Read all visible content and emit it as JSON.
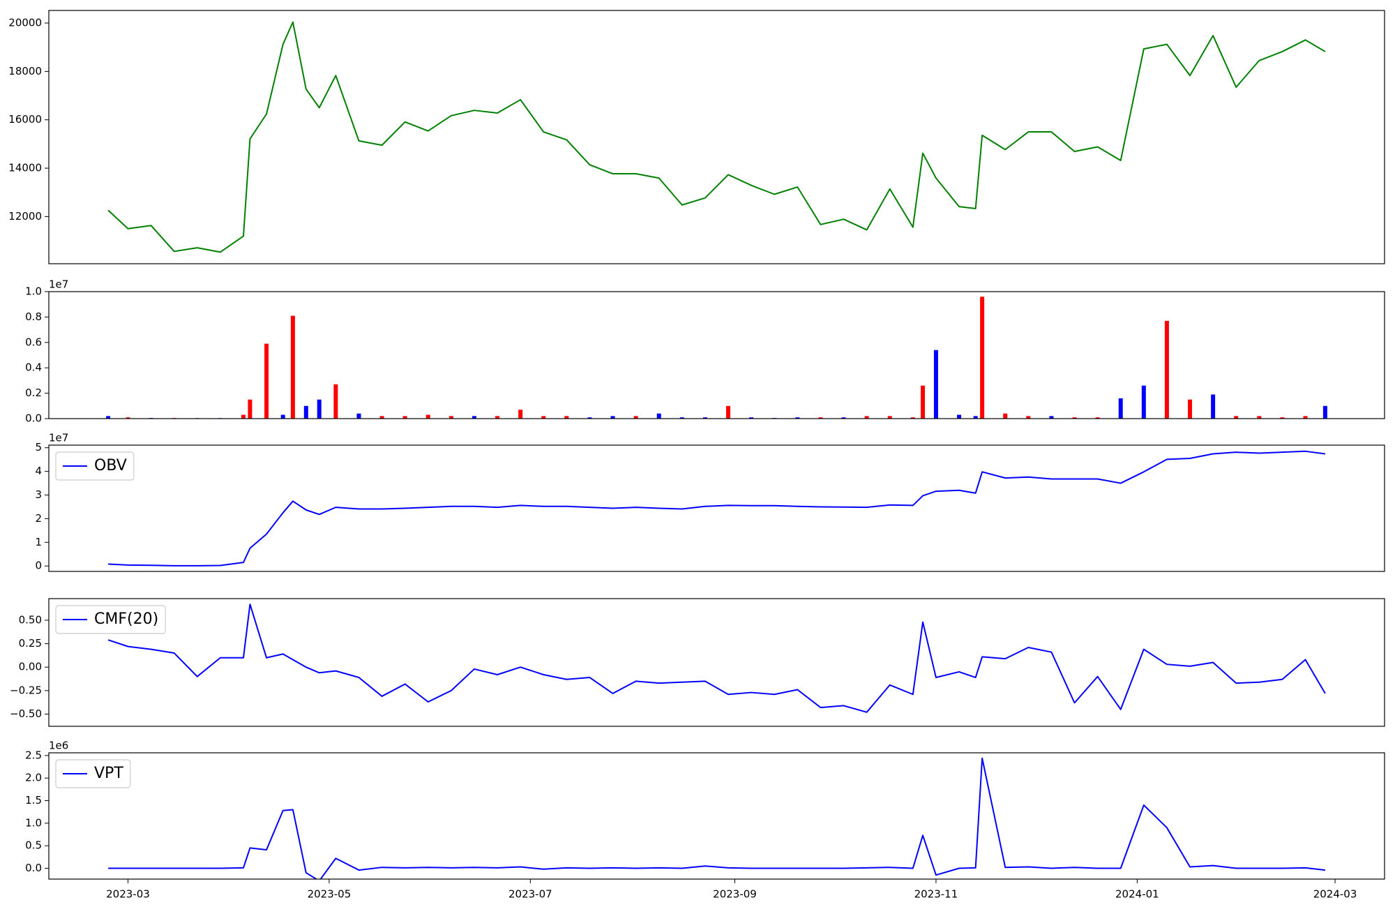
{
  "chart_data": [
    {
      "type": "line",
      "color": "#008000",
      "x": [
        "2023-02-23",
        "2023-03-01",
        "2023-03-08",
        "2023-03-15",
        "2023-03-22",
        "2023-03-29",
        "2023-04-05",
        "2023-04-07",
        "2023-04-12",
        "2023-04-17",
        "2023-04-20",
        "2023-04-24",
        "2023-04-28",
        "2023-05-03",
        "2023-05-10",
        "2023-05-17",
        "2023-05-24",
        "2023-05-31",
        "2023-06-07",
        "2023-06-14",
        "2023-06-21",
        "2023-06-28",
        "2023-07-05",
        "2023-07-12",
        "2023-07-19",
        "2023-07-26",
        "2023-08-02",
        "2023-08-09",
        "2023-08-16",
        "2023-08-23",
        "2023-08-30",
        "2023-09-06",
        "2023-09-13",
        "2023-09-20",
        "2023-09-27",
        "2023-10-04",
        "2023-10-11",
        "2023-10-18",
        "2023-10-25",
        "2023-10-28",
        "2023-11-01",
        "2023-11-08",
        "2023-11-13",
        "2023-11-15",
        "2023-11-22",
        "2023-11-29",
        "2023-12-06",
        "2023-12-13",
        "2023-12-20",
        "2023-12-27",
        "2024-01-03",
        "2024-01-10",
        "2024-01-17",
        "2024-01-24",
        "2024-01-31",
        "2024-02-07",
        "2024-02-14",
        "2024-02-21",
        "2024-02-27"
      ],
      "values": [
        12260,
        11500,
        11630,
        10560,
        10710,
        10530,
        11190,
        15210,
        16240,
        19120,
        20040,
        17270,
        16500,
        17830,
        15130,
        14950,
        15910,
        15540,
        16170,
        16390,
        16280,
        16830,
        15500,
        15170,
        14140,
        13770,
        13770,
        13590,
        12480,
        12770,
        13730,
        13290,
        12920,
        13220,
        11670,
        11890,
        11450,
        13140,
        11560,
        14620,
        13590,
        12410,
        12330,
        15360,
        14770,
        15500,
        15500,
        14690,
        14880,
        14320,
        18930,
        19120,
        17830,
        19480,
        17350,
        18450,
        18820,
        19300,
        18820
      ],
      "xlim": [
        "2023-02-05",
        "2024-03-16"
      ],
      "ylim": [
        10050,
        20520
      ],
      "yticks": [
        12000,
        14000,
        16000,
        18000,
        20000
      ]
    },
    {
      "type": "bar",
      "offset_label": "1e7",
      "x": [
        "2023-02-23",
        "2023-03-01",
        "2023-03-08",
        "2023-03-15",
        "2023-03-22",
        "2023-03-29",
        "2023-04-05",
        "2023-04-07",
        "2023-04-12",
        "2023-04-17",
        "2023-04-20",
        "2023-04-24",
        "2023-04-28",
        "2023-05-03",
        "2023-05-10",
        "2023-05-17",
        "2023-05-24",
        "2023-05-31",
        "2023-06-07",
        "2023-06-14",
        "2023-06-21",
        "2023-06-28",
        "2023-07-05",
        "2023-07-12",
        "2023-07-19",
        "2023-07-26",
        "2023-08-02",
        "2023-08-09",
        "2023-08-16",
        "2023-08-23",
        "2023-08-30",
        "2023-09-06",
        "2023-09-13",
        "2023-09-20",
        "2023-09-27",
        "2023-10-04",
        "2023-10-11",
        "2023-10-18",
        "2023-10-25",
        "2023-10-28",
        "2023-11-01",
        "2023-11-08",
        "2023-11-13",
        "2023-11-15",
        "2023-11-22",
        "2023-11-29",
        "2023-12-06",
        "2023-12-13",
        "2023-12-20",
        "2023-12-27",
        "2024-01-03",
        "2024-01-10",
        "2024-01-17",
        "2024-01-24",
        "2024-01-31",
        "2024-02-07",
        "2024-02-14",
        "2024-02-21",
        "2024-02-27"
      ],
      "values": [
        0.02,
        0.01,
        0.005,
        0.005,
        0.004,
        0.004,
        0.03,
        0.15,
        0.59,
        0.03,
        0.81,
        0.1,
        0.15,
        0.27,
        0.04,
        0.02,
        0.02,
        0.03,
        0.02,
        0.02,
        0.02,
        0.07,
        0.02,
        0.02,
        0.01,
        0.02,
        0.02,
        0.04,
        0.01,
        0.01,
        0.1,
        0.01,
        0.005,
        0.01,
        0.01,
        0.01,
        0.02,
        0.02,
        0.01,
        0.26,
        0.54,
        0.03,
        0.02,
        0.96,
        0.04,
        0.02,
        0.02,
        0.01,
        0.01,
        0.16,
        0.26,
        0.77,
        0.15,
        0.19,
        0.02,
        0.02,
        0.01,
        0.02,
        0.1
      ],
      "colors": [
        "#0000ff",
        "#ff0000",
        "#0000ff",
        "#ff0000",
        "#0000ff",
        "#0000ff",
        "#ff0000",
        "#ff0000",
        "#ff0000",
        "#0000ff",
        "#ff0000",
        "#0000ff",
        "#0000ff",
        "#ff0000",
        "#0000ff",
        "#ff0000",
        "#ff0000",
        "#ff0000",
        "#ff0000",
        "#0000ff",
        "#ff0000",
        "#ff0000",
        "#ff0000",
        "#ff0000",
        "#0000ff",
        "#0000ff",
        "#ff0000",
        "#0000ff",
        "#0000ff",
        "#0000ff",
        "#ff0000",
        "#0000ff",
        "#0000ff",
        "#0000ff",
        "#ff0000",
        "#0000ff",
        "#ff0000",
        "#ff0000",
        "#ff0000",
        "#ff0000",
        "#0000ff",
        "#0000ff",
        "#0000ff",
        "#ff0000",
        "#ff0000",
        "#ff0000",
        "#0000ff",
        "#ff0000",
        "#ff0000",
        "#0000ff",
        "#0000ff",
        "#ff0000",
        "#ff0000",
        "#0000ff",
        "#ff0000",
        "#ff0000",
        "#ff0000",
        "#ff0000",
        "#0000ff"
      ],
      "xlim": [
        "2023-02-05",
        "2024-03-16"
      ],
      "ylim": [
        0,
        1.0
      ],
      "yticks": [
        {
          "value": 0,
          "label": "0.0"
        },
        0.2,
        0.4,
        0.6,
        0.8,
        {
          "value": 1.0,
          "label": "1.0"
        }
      ]
    },
    {
      "type": "line",
      "offset_label": "1e7",
      "legend": "upper left",
      "x": [
        "2023-02-23",
        "2023-03-01",
        "2023-03-08",
        "2023-03-15",
        "2023-03-22",
        "2023-03-29",
        "2023-04-05",
        "2023-04-07",
        "2023-04-12",
        "2023-04-17",
        "2023-04-20",
        "2023-04-24",
        "2023-04-28",
        "2023-05-03",
        "2023-05-10",
        "2023-05-17",
        "2023-05-24",
        "2023-05-31",
        "2023-06-07",
        "2023-06-14",
        "2023-06-21",
        "2023-06-28",
        "2023-07-05",
        "2023-07-12",
        "2023-07-19",
        "2023-07-26",
        "2023-08-02",
        "2023-08-09",
        "2023-08-16",
        "2023-08-23",
        "2023-08-30",
        "2023-09-06",
        "2023-09-13",
        "2023-09-20",
        "2023-09-27",
        "2023-10-04",
        "2023-10-11",
        "2023-10-18",
        "2023-10-25",
        "2023-10-28",
        "2023-11-01",
        "2023-11-08",
        "2023-11-13",
        "2023-11-15",
        "2023-11-22",
        "2023-11-29",
        "2023-12-06",
        "2023-12-13",
        "2023-12-20",
        "2023-12-27",
        "2024-01-03",
        "2024-01-10",
        "2024-01-17",
        "2024-01-24",
        "2024-01-31",
        "2024-02-07",
        "2024-02-14",
        "2024-02-21",
        "2024-02-27"
      ],
      "series": [
        {
          "name": "OBV",
          "color": "#0000ff",
          "values": [
            0.08,
            0.04,
            0.03,
            0.01,
            0.01,
            0.02,
            0.15,
            0.75,
            1.35,
            2.25,
            2.74,
            2.37,
            2.18,
            2.48,
            2.41,
            2.41,
            2.44,
            2.48,
            2.52,
            2.52,
            2.48,
            2.56,
            2.52,
            2.52,
            2.48,
            2.44,
            2.48,
            2.44,
            2.41,
            2.52,
            2.56,
            2.55,
            2.55,
            2.52,
            2.5,
            2.49,
            2.48,
            2.58,
            2.56,
            2.97,
            3.16,
            3.2,
            3.08,
            3.98,
            3.72,
            3.76,
            3.68,
            3.68,
            3.68,
            3.5,
            3.98,
            4.51,
            4.55,
            4.74,
            4.81,
            4.77,
            4.81,
            4.85,
            4.74
          ]
        }
      ],
      "xlim": [
        "2023-02-05",
        "2024-03-16"
      ],
      "ylim": [
        -0.23,
        5.11
      ],
      "yticks": [
        0,
        1,
        2,
        3,
        4,
        5
      ]
    },
    {
      "type": "line",
      "legend": "upper left",
      "x": [
        "2023-02-23",
        "2023-03-01",
        "2023-03-08",
        "2023-03-15",
        "2023-03-22",
        "2023-03-29",
        "2023-04-05",
        "2023-04-07",
        "2023-04-12",
        "2023-04-17",
        "2023-04-20",
        "2023-04-24",
        "2023-04-28",
        "2023-05-03",
        "2023-05-10",
        "2023-05-17",
        "2023-05-24",
        "2023-05-31",
        "2023-06-07",
        "2023-06-14",
        "2023-06-21",
        "2023-06-28",
        "2023-07-05",
        "2023-07-12",
        "2023-07-19",
        "2023-07-26",
        "2023-08-02",
        "2023-08-09",
        "2023-08-16",
        "2023-08-23",
        "2023-08-30",
        "2023-09-06",
        "2023-09-13",
        "2023-09-20",
        "2023-09-27",
        "2023-10-04",
        "2023-10-11",
        "2023-10-18",
        "2023-10-25",
        "2023-10-28",
        "2023-11-01",
        "2023-11-08",
        "2023-11-13",
        "2023-11-15",
        "2023-11-22",
        "2023-11-29",
        "2023-12-06",
        "2023-12-13",
        "2023-12-20",
        "2023-12-27",
        "2024-01-03",
        "2024-01-10",
        "2024-01-17",
        "2024-01-24",
        "2024-01-31",
        "2024-02-07",
        "2024-02-14",
        "2024-02-21",
        "2024-02-27"
      ],
      "series": [
        {
          "name": "CMF(20)",
          "color": "#0000ff",
          "values": [
            0.29,
            0.22,
            0.19,
            0.15,
            -0.1,
            0.1,
            0.1,
            0.67,
            0.1,
            0.14,
            0.08,
            0.0,
            -0.06,
            -0.04,
            -0.11,
            -0.31,
            -0.18,
            -0.37,
            -0.25,
            -0.02,
            -0.08,
            0.0,
            -0.08,
            -0.13,
            -0.11,
            -0.28,
            -0.15,
            -0.17,
            -0.16,
            -0.15,
            -0.29,
            -0.27,
            -0.29,
            -0.24,
            -0.43,
            -0.41,
            -0.48,
            -0.19,
            -0.29,
            0.48,
            -0.11,
            -0.05,
            -0.11,
            0.11,
            0.09,
            0.21,
            0.16,
            -0.38,
            -0.1,
            -0.45,
            0.19,
            0.03,
            0.01,
            0.05,
            -0.17,
            -0.16,
            -0.13,
            0.08,
            -0.28
          ]
        }
      ],
      "xlim": [
        "2023-02-05",
        "2024-03-16"
      ],
      "ylim": [
        -0.63,
        0.73
      ],
      "yticks": [
        {
          "value": -0.5,
          "label": "−0.50"
        },
        {
          "value": -0.25,
          "label": "−0.25"
        },
        {
          "value": 0,
          "label": "0.00"
        },
        {
          "value": 0.25,
          "label": "0.25"
        },
        {
          "value": 0.5,
          "label": "0.50"
        }
      ]
    },
    {
      "type": "line",
      "offset_label": "1e6",
      "legend": "upper left",
      "x": [
        "2023-02-23",
        "2023-03-01",
        "2023-03-08",
        "2023-03-15",
        "2023-03-22",
        "2023-03-29",
        "2023-04-05",
        "2023-04-07",
        "2023-04-12",
        "2023-04-17",
        "2023-04-20",
        "2023-04-24",
        "2023-04-28",
        "2023-05-03",
        "2023-05-10",
        "2023-05-17",
        "2023-05-24",
        "2023-05-31",
        "2023-06-07",
        "2023-06-14",
        "2023-06-21",
        "2023-06-28",
        "2023-07-05",
        "2023-07-12",
        "2023-07-19",
        "2023-07-26",
        "2023-08-02",
        "2023-08-09",
        "2023-08-16",
        "2023-08-23",
        "2023-08-30",
        "2023-09-06",
        "2023-09-13",
        "2023-09-20",
        "2023-09-27",
        "2023-10-04",
        "2023-10-11",
        "2023-10-18",
        "2023-10-25",
        "2023-10-28",
        "2023-11-01",
        "2023-11-08",
        "2023-11-13",
        "2023-11-15",
        "2023-11-22",
        "2023-11-29",
        "2023-12-06",
        "2023-12-13",
        "2023-12-20",
        "2023-12-27",
        "2024-01-03",
        "2024-01-10",
        "2024-01-17",
        "2024-01-24",
        "2024-01-31",
        "2024-02-07",
        "2024-02-14",
        "2024-02-21",
        "2024-02-27"
      ],
      "series": [
        {
          "name": "VPT",
          "color": "#0000ff",
          "values": [
            0.0,
            0.0,
            0.0,
            0.0,
            0.0,
            0.0,
            0.01,
            0.45,
            0.41,
            1.28,
            1.3,
            -0.1,
            -0.28,
            0.22,
            -0.04,
            0.02,
            0.01,
            0.02,
            0.01,
            0.02,
            0.01,
            0.03,
            -0.02,
            0.01,
            0.0,
            0.01,
            0.0,
            0.01,
            0.0,
            0.05,
            0.01,
            0.0,
            0.0,
            0.0,
            0.0,
            0.0,
            0.01,
            0.02,
            0.0,
            0.73,
            -0.15,
            0.0,
            0.01,
            2.44,
            0.02,
            0.03,
            0.0,
            0.02,
            0.0,
            0.0,
            1.4,
            0.9,
            0.03,
            0.06,
            0.0,
            0.0,
            0.0,
            0.01,
            -0.04
          ]
        }
      ],
      "xlim": [
        "2023-02-05",
        "2024-03-16"
      ],
      "ylim": [
        -0.24,
        2.56
      ],
      "yticks": [
        {
          "value": 0,
          "label": "0.0"
        },
        0.5,
        {
          "value": 1.0,
          "label": "1.0"
        },
        1.5,
        {
          "value": 2.0,
          "label": "2.0"
        },
        2.5
      ],
      "xticks": [
        "2023-03",
        "2023-05",
        "2023-07",
        "2023-09",
        "2023-11",
        "2024-01",
        "2024-03"
      ]
    }
  ]
}
